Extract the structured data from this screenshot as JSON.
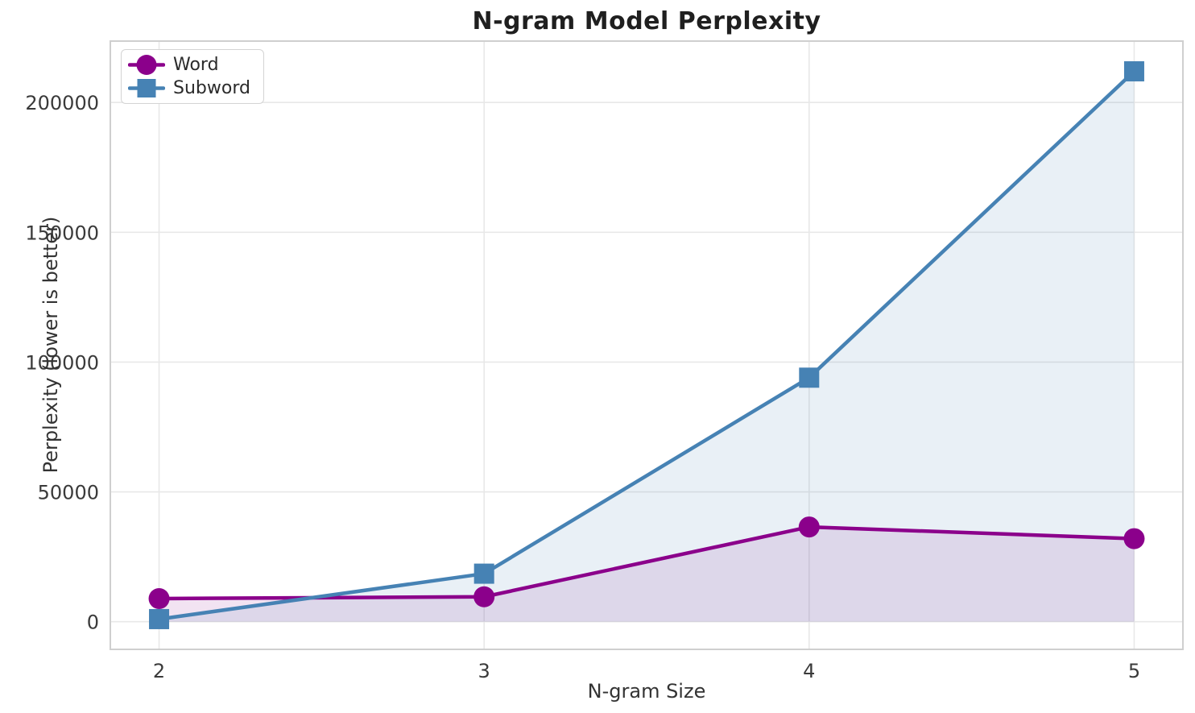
{
  "chart_data": {
    "type": "line",
    "title": "N-gram Model Perplexity",
    "xlabel": "N-gram Size",
    "ylabel": "Perplexity (lower is better)",
    "x": [
      2,
      3,
      4,
      5
    ],
    "series": [
      {
        "name": "Word",
        "color": "#8B008B",
        "marker": "circle",
        "fill_alpha": 0.11,
        "values": [
          8900,
          9600,
          36500,
          32000
        ]
      },
      {
        "name": "Subword",
        "color": "#4682B4",
        "marker": "square",
        "fill_alpha": 0.12,
        "values": [
          1000,
          18500,
          94000,
          212000
        ]
      }
    ],
    "xticks": [
      "2",
      "3",
      "4",
      "5"
    ],
    "xtick_values": [
      2,
      3,
      4,
      5
    ],
    "yticks": [
      "0",
      "50000",
      "100000",
      "150000",
      "200000"
    ],
    "ytick_values": [
      0,
      50000,
      100000,
      150000,
      200000
    ],
    "xlim": [
      1.85,
      5.15
    ],
    "ylim": [
      -10650,
      223650
    ],
    "grid": true,
    "area_fill_baseline": 0,
    "legend_position": "upper left",
    "line_width": 4.5,
    "marker_size": 13
  },
  "theme": {
    "background": "#ffffff",
    "grid_color": "#e8e8e8",
    "spine_color": "#cfcfcf",
    "tick_color": "#3a3a3a",
    "label_color": "#333333",
    "title_color": "#1f1f1f",
    "legend_border": "#d4d4d4"
  }
}
